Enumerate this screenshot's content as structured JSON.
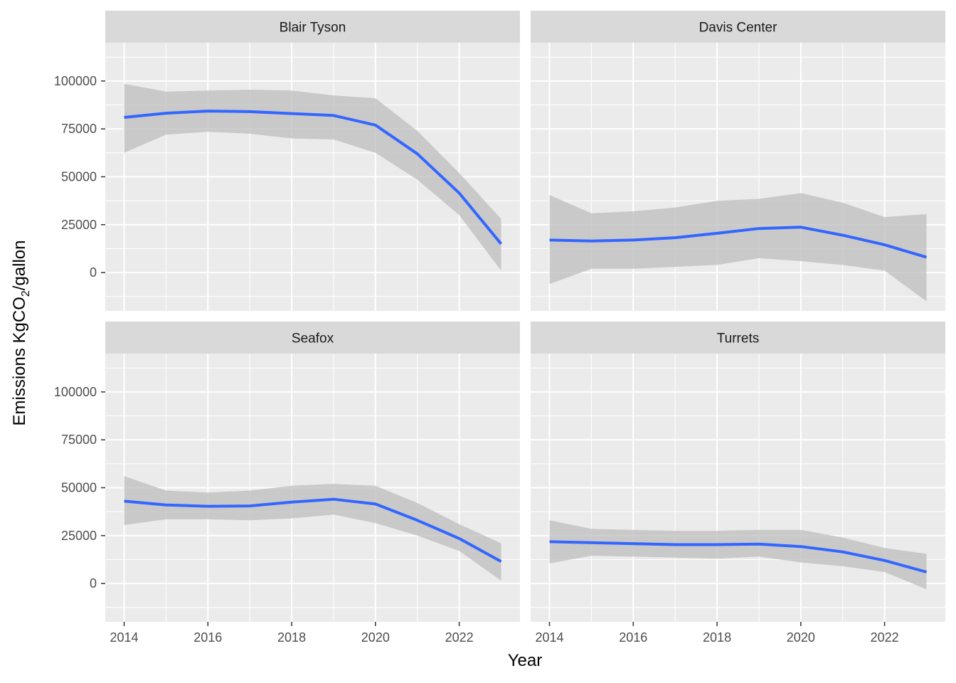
{
  "chart_data": {
    "type": "line",
    "xlabel": "Year",
    "ylabel": "Emissions KgCO₂/gallon",
    "ylabel_parts": {
      "before": "Emissions KgCO",
      "subscript": "2",
      "after": "/gallon"
    },
    "xlim": [
      2013.55,
      2023.45
    ],
    "ylim": [
      -20000,
      120000
    ],
    "x_ticks": [
      2014,
      2016,
      2018,
      2020,
      2022
    ],
    "x_tick_labels": [
      "2014",
      "2016",
      "2018",
      "2020",
      "2022"
    ],
    "y_ticks": [
      0,
      25000,
      50000,
      75000,
      100000
    ],
    "y_tick_labels": [
      "0",
      "25000",
      "50000",
      "75000",
      "100000"
    ],
    "grid": true,
    "legend": "none",
    "colors": {
      "line": "#3366FF",
      "ribbon": "#bdbdbd",
      "panel_bg": "#EBEBEB",
      "strip_bg": "#D9D9D9",
      "grid": "#FFFFFF"
    },
    "panels": [
      {
        "title": "Blair Tyson",
        "x": [
          2014,
          2015,
          2016,
          2017,
          2018,
          2019,
          2020,
          2021,
          2022,
          2023
        ],
        "y": [
          81000,
          83200,
          84300,
          84000,
          83000,
          82000,
          77000,
          62000,
          41500,
          15000
        ],
        "lower": [
          62500,
          72000,
          73500,
          72500,
          70000,
          69500,
          62500,
          48500,
          30000,
          1000
        ],
        "upper": [
          98500,
          94500,
          95000,
          95500,
          95000,
          92500,
          91000,
          74000,
          52000,
          28000
        ]
      },
      {
        "title": "Davis Center",
        "x": [
          2014,
          2015,
          2016,
          2017,
          2018,
          2019,
          2020,
          2021,
          2022,
          2023
        ],
        "y": [
          17000,
          16500,
          17000,
          18200,
          20500,
          23000,
          23700,
          19500,
          14500,
          8000
        ],
        "lower": [
          -6000,
          2000,
          2000,
          3000,
          4000,
          7500,
          6000,
          4000,
          1000,
          -15000
        ],
        "upper": [
          40500,
          31000,
          32000,
          34000,
          37500,
          38500,
          41500,
          36500,
          29000,
          30500
        ]
      },
      {
        "title": "Seafox",
        "x": [
          2014,
          2015,
          2016,
          2017,
          2018,
          2019,
          2020,
          2021,
          2022,
          2023
        ],
        "y": [
          43000,
          41000,
          40300,
          40500,
          42500,
          44000,
          41500,
          33000,
          23500,
          11500
        ],
        "lower": [
          30500,
          33500,
          33500,
          33000,
          34000,
          36000,
          31500,
          25000,
          17000,
          1500
        ],
        "upper": [
          56000,
          48500,
          47500,
          48500,
          51000,
          52000,
          51000,
          42000,
          31000,
          21000
        ]
      },
      {
        "title": "Turrets",
        "x": [
          2014,
          2015,
          2016,
          2017,
          2018,
          2019,
          2020,
          2021,
          2022,
          2023
        ],
        "y": [
          21800,
          21300,
          20800,
          20300,
          20300,
          20600,
          19300,
          16500,
          12000,
          6000
        ],
        "lower": [
          10500,
          14500,
          14000,
          13500,
          13000,
          14000,
          11000,
          9000,
          6000,
          -3000
        ],
        "upper": [
          33000,
          28500,
          28000,
          27500,
          27500,
          28000,
          28000,
          24000,
          18500,
          15500
        ]
      }
    ]
  }
}
